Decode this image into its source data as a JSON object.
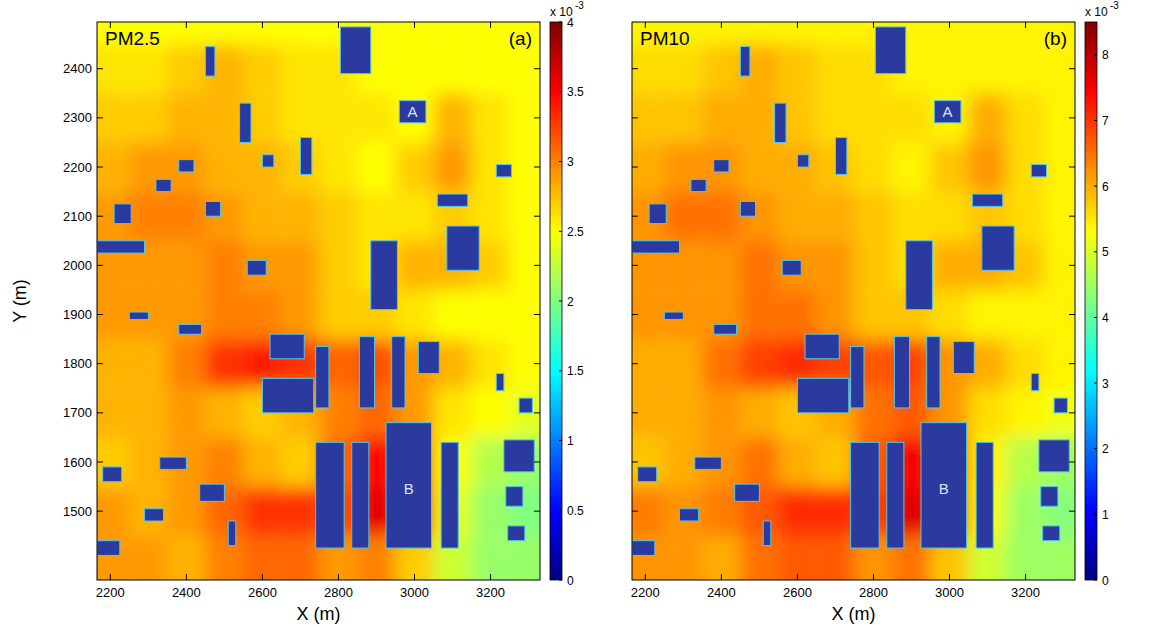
{
  "chart_data": [
    {
      "type": "heatmap",
      "title": "PM2.5",
      "panel": "(a)",
      "xlabel": "X (m)",
      "ylabel": "Y (m)",
      "xlim": [
        2165,
        3330
      ],
      "ylim": [
        1360,
        2495
      ],
      "xticks": [
        2200,
        2400,
        2600,
        2800,
        3000,
        3200
      ],
      "yticks": [
        1500,
        1600,
        1700,
        1800,
        1900,
        2000,
        2100,
        2200,
        2300,
        2400
      ],
      "x": [
        2200,
        2300,
        2400,
        2500,
        2600,
        2700,
        2800,
        2900,
        3000,
        3100,
        3200,
        3300
      ],
      "y": [
        1400,
        1500,
        1600,
        1700,
        1800,
        1900,
        2000,
        2100,
        2200,
        2300,
        2400,
        2500
      ],
      "z": [
        [
          2.9,
          2.9,
          2.8,
          3.0,
          3.1,
          3.1,
          2.9,
          3.0,
          2.7,
          2.3,
          2.1,
          2.1
        ],
        [
          2.9,
          2.8,
          2.9,
          3.1,
          3.3,
          3.3,
          3.2,
          3.6,
          3.3,
          2.4,
          2.1,
          2.0
        ],
        [
          2.7,
          2.8,
          2.9,
          3.0,
          2.8,
          2.7,
          3.1,
          3.5,
          3.2,
          2.5,
          2.2,
          2.1
        ],
        [
          2.8,
          2.8,
          2.9,
          2.8,
          2.7,
          2.8,
          3.0,
          3.1,
          2.9,
          2.6,
          2.5,
          2.4
        ],
        [
          2.8,
          2.8,
          3.0,
          3.3,
          3.4,
          3.3,
          3.1,
          3.2,
          2.9,
          2.8,
          2.6,
          2.5
        ],
        [
          2.9,
          2.9,
          2.9,
          3.0,
          3.0,
          2.9,
          2.7,
          2.7,
          2.6,
          2.5,
          2.5,
          2.5
        ],
        [
          2.9,
          2.9,
          2.9,
          3.0,
          2.9,
          2.9,
          2.7,
          2.6,
          2.8,
          2.8,
          2.7,
          2.5
        ],
        [
          2.9,
          3.0,
          3.0,
          2.9,
          2.8,
          2.8,
          2.7,
          2.6,
          2.6,
          2.7,
          2.6,
          2.5
        ],
        [
          2.8,
          2.9,
          2.9,
          2.8,
          2.8,
          2.7,
          2.6,
          2.5,
          2.7,
          2.9,
          2.6,
          2.5
        ],
        [
          2.7,
          2.7,
          2.8,
          2.8,
          2.7,
          2.6,
          2.6,
          2.6,
          2.5,
          2.8,
          2.6,
          2.5
        ],
        [
          2.6,
          2.6,
          2.7,
          2.8,
          2.7,
          2.6,
          2.6,
          2.5,
          2.5,
          2.5,
          2.5,
          2.5
        ],
        [
          2.5,
          2.5,
          2.5,
          2.5,
          2.5,
          2.5,
          2.5,
          2.5,
          2.5,
          2.5,
          2.5,
          2.5
        ]
      ],
      "buildings": [
        {
          "x": [
            2805,
            2885
          ],
          "y": [
            2390,
            2485
          ]
        },
        {
          "x": [
            2450,
            2475
          ],
          "y": [
            2385,
            2445
          ]
        },
        {
          "x": [
            2960,
            3030
          ],
          "y": [
            2290,
            2335
          ]
        },
        {
          "x": [
            3085,
            3170
          ],
          "y": [
            1990,
            2080
          ]
        },
        {
          "x": [
            3060,
            3140
          ],
          "y": [
            2120,
            2145
          ]
        },
        {
          "x": [
            3215,
            3255
          ],
          "y": [
            2180,
            2205
          ]
        },
        {
          "x": [
            2885,
            2955
          ],
          "y": [
            1910,
            2050
          ]
        },
        {
          "x": [
            2620,
            2710
          ],
          "y": [
            1810,
            1860
          ]
        },
        {
          "x": [
            2600,
            2735
          ],
          "y": [
            1700,
            1770
          ]
        },
        {
          "x": [
            2740,
            2775
          ],
          "y": [
            1710,
            1835
          ]
        },
        {
          "x": [
            2855,
            2895
          ],
          "y": [
            1710,
            1855
          ]
        },
        {
          "x": [
            2940,
            2975
          ],
          "y": [
            1710,
            1855
          ]
        },
        {
          "x": [
            3010,
            3065
          ],
          "y": [
            1780,
            1845
          ]
        },
        {
          "x": [
            3215,
            3235
          ],
          "y": [
            1745,
            1780
          ]
        },
        {
          "x": [
            3275,
            3310
          ],
          "y": [
            1700,
            1730
          ]
        },
        {
          "x": [
            2740,
            2815
          ],
          "y": [
            1425,
            1640
          ]
        },
        {
          "x": [
            2835,
            2880
          ],
          "y": [
            1425,
            1640
          ]
        },
        {
          "x": [
            2925,
            3045
          ],
          "y": [
            1425,
            1680
          ]
        },
        {
          "x": [
            3070,
            3115
          ],
          "y": [
            1425,
            1640
          ]
        },
        {
          "x": [
            3235,
            3315
          ],
          "y": [
            1580,
            1645
          ]
        },
        {
          "x": [
            3240,
            3285
          ],
          "y": [
            1510,
            1550
          ]
        },
        {
          "x": [
            3245,
            3290
          ],
          "y": [
            1440,
            1470
          ]
        },
        {
          "x": [
            2165,
            2225
          ],
          "y": [
            1410,
            1440
          ]
        },
        {
          "x": [
            2435,
            2500
          ],
          "y": [
            1520,
            1555
          ]
        },
        {
          "x": [
            2210,
            2255
          ],
          "y": [
            2085,
            2125
          ]
        },
        {
          "x": [
            2165,
            2290
          ],
          "y": [
            2025,
            2050
          ]
        },
        {
          "x": [
            2290,
            2340
          ],
          "y": [
            1480,
            1505
          ]
        },
        {
          "x": [
            2330,
            2400
          ],
          "y": [
            1585,
            1610
          ]
        },
        {
          "x": [
            2380,
            2420
          ],
          "y": [
            2190,
            2215
          ]
        },
        {
          "x": [
            2540,
            2570
          ],
          "y": [
            2250,
            2330
          ]
        },
        {
          "x": [
            2560,
            2610
          ],
          "y": [
            1980,
            2010
          ]
        },
        {
          "x": [
            2700,
            2730
          ],
          "y": [
            2185,
            2260
          ]
        },
        {
          "x": [
            2180,
            2230
          ],
          "y": [
            1560,
            1590
          ]
        },
        {
          "x": [
            2250,
            2300
          ],
          "y": [
            1890,
            1905
          ]
        },
        {
          "x": [
            2380,
            2440
          ],
          "y": [
            1860,
            1880
          ]
        },
        {
          "x": [
            2510,
            2530
          ],
          "y": [
            1430,
            1480
          ]
        },
        {
          "x": [
            2320,
            2360
          ],
          "y": [
            2150,
            2175
          ]
        },
        {
          "x": [
            2450,
            2490
          ],
          "y": [
            2100,
            2130
          ]
        },
        {
          "x": [
            2600,
            2630
          ],
          "y": [
            2200,
            2225
          ]
        }
      ],
      "annotations": [
        {
          "text": "A",
          "x": 2995,
          "y": 2312
        },
        {
          "text": "B",
          "x": 2985,
          "y": 1545
        }
      ],
      "colorbar": {
        "range": [
          0,
          4
        ],
        "ticks": [
          0,
          0.5,
          1,
          1.5,
          2,
          2.5,
          3,
          3.5,
          4
        ],
        "multiplier": "x 10",
        "exponent": "-3"
      }
    },
    {
      "type": "heatmap",
      "title": "PM10",
      "panel": "(b)",
      "xlabel": "X (m)",
      "tick_labels": "x",
      "xlim": [
        2165,
        3330
      ],
      "ylim": [
        1360,
        2495
      ],
      "xticks": [
        2200,
        2400,
        2600,
        2800,
        3000,
        3200
      ],
      "yticks": [
        1500,
        1600,
        1700,
        1800,
        1900,
        2000,
        2100,
        2200,
        2300,
        2400
      ],
      "x": [
        2200,
        2300,
        2400,
        2500,
        2600,
        2700,
        2800,
        2900,
        3000,
        3100,
        3200,
        3300
      ],
      "y": [
        1400,
        1500,
        1600,
        1700,
        1800,
        1900,
        2000,
        2100,
        2200,
        2300,
        2400,
        2500
      ],
      "z": [
        [
          6.2,
          6.2,
          6.0,
          6.5,
          6.7,
          6.7,
          6.2,
          6.5,
          5.8,
          4.9,
          4.5,
          4.5
        ],
        [
          6.4,
          6.2,
          6.4,
          6.7,
          7.1,
          7.1,
          6.9,
          7.7,
          7.1,
          5.2,
          4.5,
          4.3
        ],
        [
          5.8,
          6.0,
          6.2,
          6.5,
          6.0,
          5.8,
          6.7,
          7.5,
          6.9,
          5.4,
          4.7,
          4.5
        ],
        [
          6.0,
          6.0,
          6.2,
          6.0,
          5.8,
          6.0,
          6.5,
          6.7,
          6.2,
          5.6,
          5.4,
          5.2
        ],
        [
          6.0,
          6.0,
          6.5,
          6.9,
          7.1,
          6.9,
          6.7,
          6.9,
          6.2,
          6.0,
          5.6,
          5.4
        ],
        [
          6.2,
          6.2,
          6.2,
          6.5,
          6.5,
          6.2,
          5.8,
          5.8,
          5.6,
          5.4,
          5.4,
          5.4
        ],
        [
          6.2,
          6.2,
          6.2,
          6.5,
          6.2,
          6.2,
          5.8,
          5.6,
          6.0,
          6.0,
          5.8,
          5.4
        ],
        [
          6.2,
          6.5,
          6.5,
          6.2,
          6.0,
          6.0,
          5.8,
          5.6,
          5.6,
          5.8,
          5.6,
          5.4
        ],
        [
          6.0,
          6.2,
          6.2,
          6.0,
          6.0,
          5.8,
          5.6,
          5.4,
          5.8,
          6.2,
          5.6,
          5.4
        ],
        [
          5.8,
          5.8,
          6.0,
          6.0,
          5.8,
          5.6,
          5.6,
          5.6,
          5.4,
          6.0,
          5.6,
          5.4
        ],
        [
          5.6,
          5.6,
          5.8,
          6.0,
          5.8,
          5.6,
          5.6,
          5.4,
          5.4,
          5.4,
          5.4,
          5.4
        ],
        [
          5.4,
          5.4,
          5.4,
          5.4,
          5.4,
          5.4,
          5.4,
          5.4,
          5.4,
          5.4,
          5.4,
          5.4
        ]
      ],
      "buildings": [
        {
          "x": [
            2805,
            2885
          ],
          "y": [
            2390,
            2485
          ]
        },
        {
          "x": [
            2450,
            2475
          ],
          "y": [
            2385,
            2445
          ]
        },
        {
          "x": [
            2960,
            3030
          ],
          "y": [
            2290,
            2335
          ]
        },
        {
          "x": [
            3085,
            3170
          ],
          "y": [
            1990,
            2080
          ]
        },
        {
          "x": [
            3060,
            3140
          ],
          "y": [
            2120,
            2145
          ]
        },
        {
          "x": [
            3215,
            3255
          ],
          "y": [
            2180,
            2205
          ]
        },
        {
          "x": [
            2885,
            2955
          ],
          "y": [
            1910,
            2050
          ]
        },
        {
          "x": [
            2620,
            2710
          ],
          "y": [
            1810,
            1860
          ]
        },
        {
          "x": [
            2600,
            2735
          ],
          "y": [
            1700,
            1770
          ]
        },
        {
          "x": [
            2740,
            2775
          ],
          "y": [
            1710,
            1835
          ]
        },
        {
          "x": [
            2855,
            2895
          ],
          "y": [
            1710,
            1855
          ]
        },
        {
          "x": [
            2940,
            2975
          ],
          "y": [
            1710,
            1855
          ]
        },
        {
          "x": [
            3010,
            3065
          ],
          "y": [
            1780,
            1845
          ]
        },
        {
          "x": [
            3215,
            3235
          ],
          "y": [
            1745,
            1780
          ]
        },
        {
          "x": [
            3275,
            3310
          ],
          "y": [
            1700,
            1730
          ]
        },
        {
          "x": [
            2740,
            2815
          ],
          "y": [
            1425,
            1640
          ]
        },
        {
          "x": [
            2835,
            2880
          ],
          "y": [
            1425,
            1640
          ]
        },
        {
          "x": [
            2925,
            3045
          ],
          "y": [
            1425,
            1680
          ]
        },
        {
          "x": [
            3070,
            3115
          ],
          "y": [
            1425,
            1640
          ]
        },
        {
          "x": [
            3235,
            3315
          ],
          "y": [
            1580,
            1645
          ]
        },
        {
          "x": [
            3240,
            3285
          ],
          "y": [
            1510,
            1550
          ]
        },
        {
          "x": [
            3245,
            3290
          ],
          "y": [
            1440,
            1470
          ]
        },
        {
          "x": [
            2165,
            2225
          ],
          "y": [
            1410,
            1440
          ]
        },
        {
          "x": [
            2435,
            2500
          ],
          "y": [
            1520,
            1555
          ]
        },
        {
          "x": [
            2210,
            2255
          ],
          "y": [
            2085,
            2125
          ]
        },
        {
          "x": [
            2165,
            2290
          ],
          "y": [
            2025,
            2050
          ]
        },
        {
          "x": [
            2290,
            2340
          ],
          "y": [
            1480,
            1505
          ]
        },
        {
          "x": [
            2330,
            2400
          ],
          "y": [
            1585,
            1610
          ]
        },
        {
          "x": [
            2380,
            2420
          ],
          "y": [
            2190,
            2215
          ]
        },
        {
          "x": [
            2540,
            2570
          ],
          "y": [
            2250,
            2330
          ]
        },
        {
          "x": [
            2560,
            2610
          ],
          "y": [
            1980,
            2010
          ]
        },
        {
          "x": [
            2700,
            2730
          ],
          "y": [
            2185,
            2260
          ]
        },
        {
          "x": [
            2180,
            2230
          ],
          "y": [
            1560,
            1590
          ]
        },
        {
          "x": [
            2250,
            2300
          ],
          "y": [
            1890,
            1905
          ]
        },
        {
          "x": [
            2380,
            2440
          ],
          "y": [
            1860,
            1880
          ]
        },
        {
          "x": [
            2510,
            2530
          ],
          "y": [
            1430,
            1480
          ]
        },
        {
          "x": [
            2320,
            2360
          ],
          "y": [
            2150,
            2175
          ]
        },
        {
          "x": [
            2450,
            2490
          ],
          "y": [
            2100,
            2130
          ]
        },
        {
          "x": [
            2600,
            2630
          ],
          "y": [
            2200,
            2225
          ]
        }
      ],
      "annotations": [
        {
          "text": "A",
          "x": 2995,
          "y": 2312
        },
        {
          "text": "B",
          "x": 2985,
          "y": 1545
        }
      ],
      "colorbar": {
        "range": [
          0,
          8.5
        ],
        "ticks": [
          0,
          1,
          2,
          3,
          4,
          5,
          6,
          7,
          8
        ],
        "multiplier": "x 10",
        "exponent": "-3"
      }
    }
  ]
}
